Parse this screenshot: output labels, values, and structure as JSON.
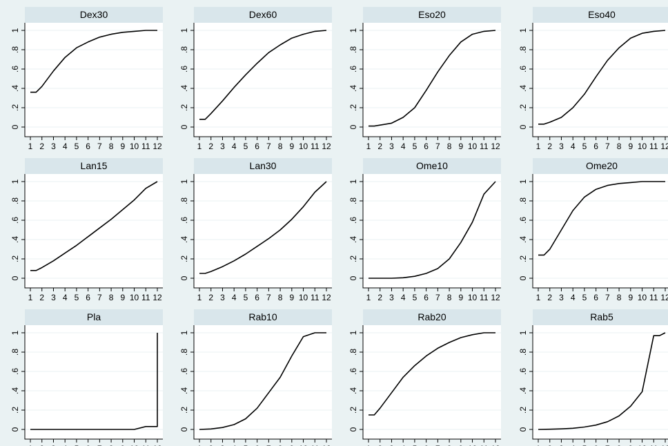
{
  "chart_data": {
    "type": "line",
    "layout": "small-multiples-3x4",
    "xlabel": "",
    "ylabel": "",
    "xlim": [
      1,
      12
    ],
    "ylim": [
      0,
      1
    ],
    "x_ticks": [
      "1",
      "2",
      "3",
      "4",
      "5",
      "6",
      "7",
      "8",
      "9",
      "10",
      "11",
      "12"
    ],
    "y_ticks": [
      {
        "value": 0,
        "label": "0"
      },
      {
        "value": 0.2,
        "label": ".2"
      },
      {
        "value": 0.4,
        "label": ".4"
      },
      {
        "value": 0.6,
        "label": ".6"
      },
      {
        "value": 0.8,
        "label": ".8"
      },
      {
        "value": 1,
        "label": "1"
      }
    ],
    "grid": true,
    "colors": {
      "background": "#eaf2f3",
      "header": "#d9e6eb",
      "plot": "#ffffff",
      "line": "#000000"
    },
    "panels": [
      {
        "title": "Dex30",
        "x": [
          1,
          1.5,
          2,
          3,
          4,
          5,
          6,
          7,
          8,
          9,
          10,
          11,
          12
        ],
        "values": [
          0.36,
          0.36,
          0.42,
          0.58,
          0.72,
          0.82,
          0.88,
          0.93,
          0.96,
          0.98,
          0.99,
          1.0,
          1.0
        ]
      },
      {
        "title": "Dex60",
        "x": [
          1,
          1.5,
          2,
          3,
          4,
          5,
          6,
          7,
          8,
          9,
          10,
          11,
          12
        ],
        "values": [
          0.08,
          0.08,
          0.14,
          0.27,
          0.41,
          0.54,
          0.66,
          0.77,
          0.85,
          0.92,
          0.96,
          0.99,
          1.0
        ]
      },
      {
        "title": "Eso20",
        "x": [
          1,
          1.5,
          2,
          3,
          4,
          5,
          6,
          7,
          8,
          9,
          10,
          11,
          12
        ],
        "values": [
          0.01,
          0.01,
          0.02,
          0.04,
          0.1,
          0.2,
          0.38,
          0.57,
          0.74,
          0.88,
          0.96,
          0.99,
          1.0
        ]
      },
      {
        "title": "Eso40",
        "x": [
          1,
          1.5,
          2,
          3,
          4,
          5,
          6,
          7,
          8,
          9,
          10,
          11,
          12
        ],
        "values": [
          0.03,
          0.03,
          0.05,
          0.1,
          0.2,
          0.34,
          0.52,
          0.69,
          0.82,
          0.92,
          0.97,
          0.99,
          1.0
        ]
      },
      {
        "title": "Lan15",
        "x": [
          1,
          1.5,
          2,
          3,
          4,
          5,
          6,
          7,
          8,
          9,
          10,
          11,
          12
        ],
        "values": [
          0.08,
          0.08,
          0.11,
          0.18,
          0.26,
          0.34,
          0.43,
          0.52,
          0.61,
          0.71,
          0.81,
          0.93,
          1.0
        ]
      },
      {
        "title": "Lan30",
        "x": [
          1,
          1.5,
          2,
          3,
          4,
          5,
          6,
          7,
          8,
          9,
          10,
          11,
          12
        ],
        "values": [
          0.05,
          0.05,
          0.07,
          0.12,
          0.18,
          0.25,
          0.33,
          0.41,
          0.5,
          0.61,
          0.74,
          0.89,
          1.0
        ]
      },
      {
        "title": "Ome10",
        "x": [
          1,
          2,
          3,
          4,
          5,
          6,
          7,
          8,
          9,
          10,
          11,
          12
        ],
        "values": [
          0.0,
          0.0,
          0.0,
          0.005,
          0.02,
          0.05,
          0.1,
          0.2,
          0.37,
          0.58,
          0.87,
          1.0
        ]
      },
      {
        "title": "Ome20",
        "x": [
          1,
          1.5,
          2,
          3,
          4,
          5,
          6,
          7,
          8,
          9,
          10,
          11,
          12
        ],
        "values": [
          0.24,
          0.24,
          0.3,
          0.5,
          0.7,
          0.84,
          0.92,
          0.96,
          0.98,
          0.99,
          1.0,
          1.0,
          1.0
        ]
      },
      {
        "title": "Pla",
        "x": [
          1,
          2,
          3,
          4,
          5,
          6,
          7,
          8,
          9,
          10,
          11,
          12,
          12
        ],
        "values": [
          0.0,
          0.0,
          0.0,
          0.0,
          0.0,
          0.0,
          0.0,
          0.0,
          0.0,
          0.0,
          0.03,
          0.03,
          1.0
        ]
      },
      {
        "title": "Rab10",
        "x": [
          1,
          2,
          3,
          4,
          5,
          6,
          7,
          8,
          9,
          10,
          11,
          12
        ],
        "values": [
          0.0,
          0.005,
          0.02,
          0.05,
          0.11,
          0.22,
          0.38,
          0.54,
          0.76,
          0.96,
          1.0,
          1.0
        ]
      },
      {
        "title": "Rab20",
        "x": [
          1,
          1.5,
          2,
          3,
          4,
          5,
          6,
          7,
          8,
          9,
          10,
          11,
          12
        ],
        "values": [
          0.15,
          0.15,
          0.22,
          0.38,
          0.54,
          0.66,
          0.76,
          0.84,
          0.9,
          0.95,
          0.98,
          1.0,
          1.0
        ]
      },
      {
        "title": "Rab5",
        "x": [
          1,
          2,
          3,
          4,
          5,
          6,
          7,
          8,
          9,
          10,
          11,
          11.5,
          12
        ],
        "values": [
          0.0,
          0.002,
          0.006,
          0.012,
          0.025,
          0.045,
          0.08,
          0.14,
          0.24,
          0.39,
          0.97,
          0.97,
          1.0
        ]
      }
    ]
  }
}
